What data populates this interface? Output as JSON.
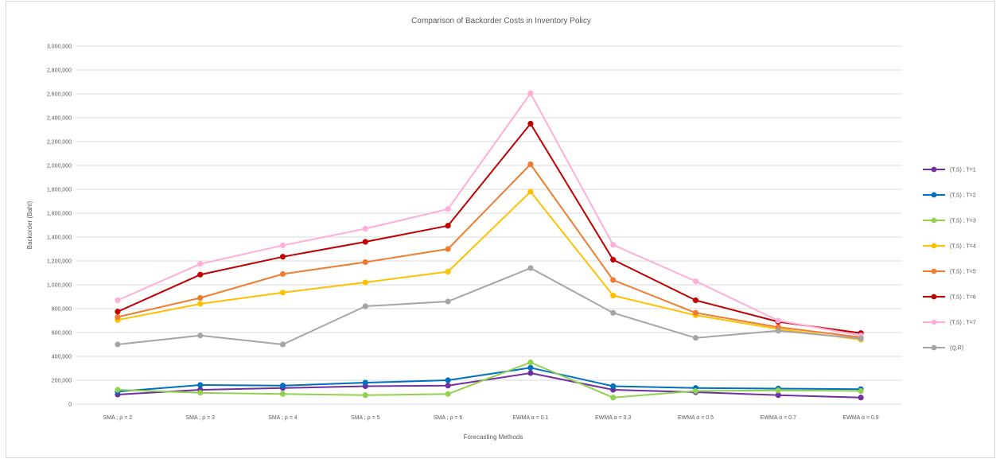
{
  "chart_data": {
    "type": "line",
    "title": "Comparison of Backorder Costs in Inventory Policy",
    "xlabel": "Forecasting Methods",
    "ylabel": "Backorder (Baht)",
    "ylim": [
      0,
      3000000
    ],
    "yticks": [
      0,
      200000,
      400000,
      600000,
      800000,
      1000000,
      1200000,
      1400000,
      1600000,
      1800000,
      2000000,
      2200000,
      2400000,
      2600000,
      2800000,
      3000000
    ],
    "ytick_labels": [
      "0",
      "200,000",
      "400,000",
      "600,000",
      "800,000",
      "1,000,000",
      "1,200,000",
      "1,400,000",
      "1,600,000",
      "1,800,000",
      "2,000,000",
      "2,200,000",
      "2,400,000",
      "2,600,000",
      "2,800,000",
      "3,000,000"
    ],
    "categories": [
      "SMA ; ρ = 2",
      "SMA ; ρ = 3",
      "SMA ; ρ = 4",
      "SMA ; ρ = 5",
      "SMA ; ρ = 6",
      "EWMA α = 0.1",
      "EWMA α = 0.3",
      "EWMA α = 0.5",
      "EWMA α = 0.7",
      "EWMA α = 0.9"
    ],
    "grid": true,
    "legend_position": "right",
    "series": [
      {
        "name": "(T,S) ; T=1",
        "color": "#7030a0",
        "values": [
          80000,
          120000,
          135000,
          150000,
          155000,
          260000,
          120000,
          100000,
          75000,
          55000
        ]
      },
      {
        "name": "(T,S) ; T=2",
        "color": "#0070c0",
        "values": [
          105000,
          160000,
          155000,
          180000,
          200000,
          305000,
          150000,
          135000,
          130000,
          125000
        ]
      },
      {
        "name": "(T,S) ; T=3",
        "color": "#92d050",
        "values": [
          120000,
          95000,
          85000,
          75000,
          85000,
          350000,
          55000,
          110000,
          115000,
          110000
        ]
      },
      {
        "name": "(T,S) ; T=4",
        "color": "#ffc000",
        "values": [
          705000,
          840000,
          935000,
          1020000,
          1110000,
          1780000,
          910000,
          745000,
          630000,
          540000
        ]
      },
      {
        "name": "(T,S) ; T=5",
        "color": "#ed7d31",
        "values": [
          730000,
          890000,
          1090000,
          1190000,
          1300000,
          2010000,
          1040000,
          765000,
          645000,
          560000
        ]
      },
      {
        "name": "(T,S) ; T=6",
        "color": "#c00000",
        "values": [
          775000,
          1085000,
          1235000,
          1360000,
          1495000,
          2350000,
          1210000,
          870000,
          690000,
          595000
        ]
      },
      {
        "name": "(T,S) ; T=7",
        "color": "#ffaed8",
        "values": [
          870000,
          1175000,
          1330000,
          1470000,
          1635000,
          2605000,
          1335000,
          1030000,
          700000,
          575000
        ]
      },
      {
        "name": "(Q,R)",
        "color": "#a5a5a5",
        "values": [
          500000,
          575000,
          500000,
          820000,
          860000,
          1140000,
          765000,
          555000,
          615000,
          550000
        ]
      }
    ]
  }
}
